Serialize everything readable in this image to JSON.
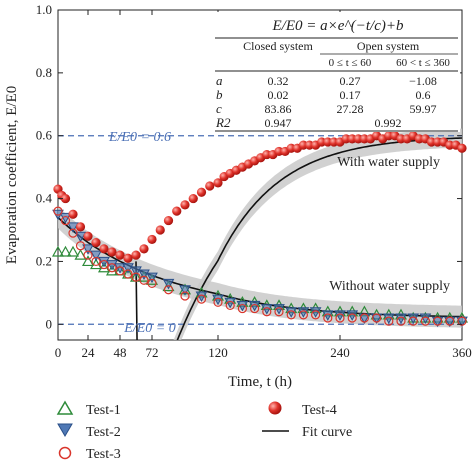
{
  "chart_data": {
    "type": "scatter",
    "xlabel": "Time, t (h)",
    "ylabel": "Evaporation coefficient, E/E0",
    "xlim": [
      0,
      360
    ],
    "ylim": [
      -0.05,
      1.0
    ],
    "x_ticks": [
      "0",
      "24",
      "48",
      "72",
      "120",
      "240",
      "360"
    ],
    "y_ticks": [
      "0",
      "0.2",
      "0.4",
      "0.6",
      "0.8",
      "1.0"
    ],
    "grid": false,
    "legend_position": "bottom",
    "reference_lines": [
      {
        "label": "E/E0 = 0.6",
        "y": 0.6,
        "color": "#4a6fb5"
      },
      {
        "label": "E/E0 = 0",
        "y": 0.0,
        "color": "#4a6fb5"
      }
    ],
    "annotations": [
      "With water supply",
      "Without water supply"
    ],
    "formula_table": {
      "title": "E/E0 = a×e^(−t/c)+b",
      "header_row1": [
        "",
        "Closed system",
        "Open system"
      ],
      "header_row2": [
        "",
        "",
        "0 ≤ t ≤ 60",
        "60 < t ≤ 360"
      ],
      "rows": [
        {
          "param": "a",
          "values": [
            "0.32",
            "0.27",
            "−1.08"
          ]
        },
        {
          "param": "b",
          "values": [
            "0.02",
            "0.17",
            "0.6"
          ]
        },
        {
          "param": "c",
          "values": [
            "83.86",
            "27.28",
            "59.97"
          ]
        },
        {
          "param": "R2",
          "values": [
            "0.947",
            "0.992"
          ]
        }
      ]
    },
    "series": [
      {
        "name": "Test-1",
        "marker": "triangle-up-open",
        "color": "#2e8b3a",
        "x": [
          0,
          6,
          12,
          18,
          24,
          30,
          36,
          42,
          48,
          54,
          60,
          66,
          72,
          84,
          96,
          108,
          120,
          132,
          144,
          156,
          168,
          180,
          192,
          204,
          216,
          228,
          240,
          252,
          264,
          276,
          288,
          300,
          312,
          324,
          336,
          348,
          360
        ],
        "y": [
          0.23,
          0.23,
          0.23,
          0.22,
          0.2,
          0.19,
          0.18,
          0.17,
          0.17,
          0.16,
          0.15,
          0.15,
          0.14,
          0.12,
          0.11,
          0.1,
          0.09,
          0.08,
          0.07,
          0.07,
          0.06,
          0.06,
          0.05,
          0.05,
          0.05,
          0.04,
          0.04,
          0.04,
          0.04,
          0.03,
          0.03,
          0.03,
          0.02,
          0.02,
          0.02,
          0.02,
          0.02
        ]
      },
      {
        "name": "Test-2",
        "marker": "triangle-down-filled",
        "color": "#4f78b5",
        "x": [
          0,
          6,
          12,
          18,
          24,
          30,
          36,
          42,
          48,
          54,
          60,
          66,
          72,
          84,
          96,
          108,
          120,
          132,
          144,
          156,
          168,
          180,
          192,
          204,
          216,
          228,
          240,
          252,
          264,
          276,
          288,
          300,
          312,
          324,
          336,
          348,
          360
        ],
        "y": [
          0.35,
          0.34,
          0.31,
          0.28,
          0.24,
          0.22,
          0.2,
          0.19,
          0.18,
          0.18,
          0.17,
          0.16,
          0.15,
          0.13,
          0.11,
          0.09,
          0.08,
          0.07,
          0.06,
          0.06,
          0.05,
          0.05,
          0.04,
          0.04,
          0.04,
          0.03,
          0.03,
          0.03,
          0.02,
          0.02,
          0.02,
          0.02,
          0.02,
          0.02,
          0.01,
          0.01,
          0.01
        ]
      },
      {
        "name": "Test-3",
        "marker": "circle-open",
        "color": "#d9342b",
        "x": [
          0,
          6,
          12,
          18,
          24,
          30,
          36,
          42,
          48,
          54,
          60,
          66,
          72,
          84,
          96,
          108,
          120,
          132,
          144,
          156,
          168,
          180,
          192,
          204,
          216,
          228,
          240,
          252,
          264,
          276,
          288,
          300,
          312,
          324,
          336,
          348,
          360
        ],
        "y": [
          0.36,
          0.33,
          0.29,
          0.25,
          0.22,
          0.2,
          0.19,
          0.18,
          0.17,
          0.16,
          0.15,
          0.14,
          0.13,
          0.11,
          0.09,
          0.08,
          0.07,
          0.06,
          0.05,
          0.05,
          0.04,
          0.04,
          0.03,
          0.03,
          0.03,
          0.02,
          0.02,
          0.02,
          0.02,
          0.02,
          0.01,
          0.01,
          0.01,
          0.01,
          0.01,
          0.01,
          0.01
        ]
      },
      {
        "name": "Test-4",
        "marker": "circle-filled",
        "color": "#e0332b",
        "x": [
          0,
          3,
          6,
          12,
          18,
          24,
          30,
          36,
          42,
          48,
          54,
          60,
          66,
          72,
          78,
          84,
          90,
          96,
          102,
          108,
          114,
          120,
          126,
          132,
          138,
          144,
          150,
          156,
          162,
          168,
          174,
          180,
          186,
          192,
          198,
          204,
          210,
          216,
          222,
          228,
          234,
          240,
          246,
          252,
          258,
          264,
          270,
          276,
          282,
          288,
          294,
          300,
          306,
          312,
          318,
          324,
          330,
          336,
          342,
          348,
          354,
          360
        ],
        "y": [
          0.43,
          0.41,
          0.4,
          0.35,
          0.31,
          0.28,
          0.26,
          0.24,
          0.23,
          0.22,
          0.21,
          0.22,
          0.24,
          0.27,
          0.3,
          0.33,
          0.36,
          0.38,
          0.4,
          0.42,
          0.44,
          0.45,
          0.47,
          0.48,
          0.49,
          0.5,
          0.51,
          0.52,
          0.53,
          0.54,
          0.54,
          0.55,
          0.55,
          0.56,
          0.56,
          0.57,
          0.57,
          0.57,
          0.58,
          0.58,
          0.58,
          0.58,
          0.59,
          0.59,
          0.59,
          0.59,
          0.59,
          0.6,
          0.59,
          0.6,
          0.6,
          0.59,
          0.59,
          0.6,
          0.59,
          0.59,
          0.58,
          0.58,
          0.58,
          0.57,
          0.57,
          0.56
        ]
      },
      {
        "name": "Fit curve",
        "marker": "line",
        "color": "#111111"
      }
    ]
  }
}
